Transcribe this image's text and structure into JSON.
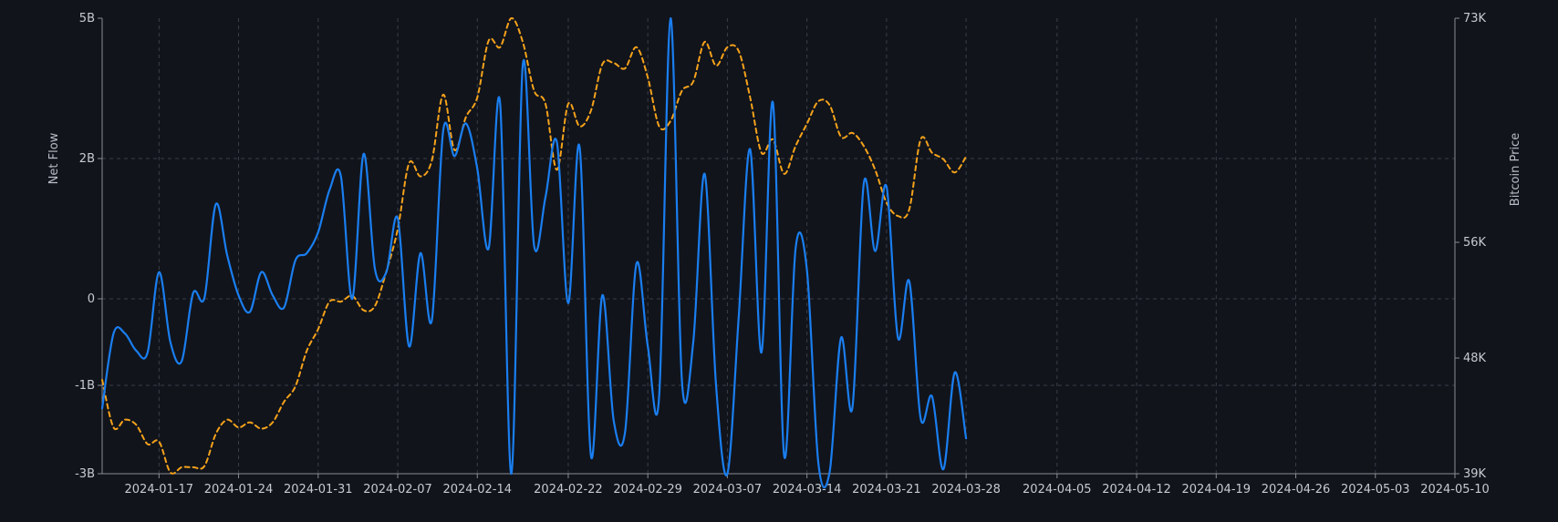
{
  "chart_data": {
    "type": "line",
    "x_range": [
      "2024-01-12",
      "2024-05-10"
    ],
    "x_ticks": [
      "2024-01-17",
      "2024-01-24",
      "2024-01-31",
      "2024-02-07",
      "2024-02-14",
      "2024-02-22",
      "2024-02-29",
      "2024-03-07",
      "2024-03-14",
      "2024-03-21",
      "2024-03-28",
      "2024-04-05",
      "2024-04-12",
      "2024-04-19",
      "2024-04-26",
      "2024-05-03",
      "2024-05-10"
    ],
    "y_left": {
      "label": "Net Flow",
      "ticks": [
        "5B",
        "2B",
        "0",
        "-1B",
        "-3B"
      ],
      "tick_values": [
        5,
        2,
        0,
        -1,
        -3
      ]
    },
    "y_right": {
      "label": "Bitcoin Price",
      "ticks": [
        "73K",
        "56K",
        "48K",
        "39K"
      ]
    },
    "grid": true,
    "colors": {
      "net_flow": "#1a7ef0",
      "price": "#f5a21b",
      "background": "#11141b",
      "grid": "#3a3e48"
    },
    "series": [
      {
        "name": "Net Flow",
        "axis": "left",
        "style": "solid",
        "color": "#1a7ef0",
        "points": [
          [
            "2024-01-12",
            -1.52
          ],
          [
            "2024-01-13",
            -0.4
          ],
          [
            "2024-01-14",
            -0.4
          ],
          [
            "2024-01-15",
            -0.6
          ],
          [
            "2024-01-16",
            -0.62
          ],
          [
            "2024-01-17",
            0.38
          ],
          [
            "2024-01-18",
            -0.5
          ],
          [
            "2024-01-19",
            -0.72
          ],
          [
            "2024-01-20",
            0.08
          ],
          [
            "2024-01-21",
            0.02
          ],
          [
            "2024-01-22",
            1.35
          ],
          [
            "2024-01-23",
            0.62
          ],
          [
            "2024-01-24",
            0.05
          ],
          [
            "2024-01-25",
            -0.15
          ],
          [
            "2024-01-26",
            0.38
          ],
          [
            "2024-01-27",
            0.05
          ],
          [
            "2024-01-28",
            -0.1
          ],
          [
            "2024-01-29",
            0.55
          ],
          [
            "2024-01-30",
            0.65
          ],
          [
            "2024-01-31",
            0.95
          ],
          [
            "2024-02-01",
            1.55
          ],
          [
            "2024-02-02",
            1.75
          ],
          [
            "2024-02-03",
            0.0
          ],
          [
            "2024-02-04",
            2.1
          ],
          [
            "2024-02-05",
            0.42
          ],
          [
            "2024-02-06",
            0.38
          ],
          [
            "2024-02-07",
            1.15
          ],
          [
            "2024-02-08",
            -0.55
          ],
          [
            "2024-02-09",
            0.65
          ],
          [
            "2024-02-10",
            -0.25
          ],
          [
            "2024-02-11",
            2.6
          ],
          [
            "2024-02-12",
            2.05
          ],
          [
            "2024-02-13",
            2.75
          ],
          [
            "2024-02-14",
            1.85
          ],
          [
            "2024-02-15",
            0.72
          ],
          [
            "2024-02-16",
            3.2
          ],
          [
            "2024-02-17",
            -3.75
          ],
          [
            "2024-02-18",
            4.0
          ],
          [
            "2024-02-19",
            0.75
          ],
          [
            "2024-02-20",
            1.45
          ],
          [
            "2024-02-21",
            2.35
          ],
          [
            "2024-02-22",
            -0.05
          ],
          [
            "2024-02-23",
            2.25
          ],
          [
            "2024-02-24",
            -2.6
          ],
          [
            "2024-02-25",
            0.05
          ],
          [
            "2024-02-26",
            -1.8
          ],
          [
            "2024-02-27",
            -2.05
          ],
          [
            "2024-02-28",
            0.5
          ],
          [
            "2024-02-29",
            -0.55
          ],
          [
            "2024-03-01",
            -1.25
          ],
          [
            "2024-03-02",
            5.0
          ],
          [
            "2024-03-03",
            -0.95
          ],
          [
            "2024-03-04",
            -0.5
          ],
          [
            "2024-03-05",
            1.78
          ],
          [
            "2024-03-06",
            -1.0
          ],
          [
            "2024-03-07",
            -3.0
          ],
          [
            "2024-03-08",
            -0.2
          ],
          [
            "2024-03-09",
            2.2
          ],
          [
            "2024-03-10",
            -0.62
          ],
          [
            "2024-03-11",
            3.2
          ],
          [
            "2024-03-12",
            -2.6
          ],
          [
            "2024-03-13",
            0.72
          ],
          [
            "2024-03-14",
            0.4
          ],
          [
            "2024-03-15",
            -2.75
          ],
          [
            "2024-03-16",
            -2.95
          ],
          [
            "2024-03-17",
            -0.45
          ],
          [
            "2024-03-18",
            -1.5
          ],
          [
            "2024-03-19",
            1.65
          ],
          [
            "2024-03-20",
            0.68
          ],
          [
            "2024-03-21",
            1.6
          ],
          [
            "2024-03-22",
            -0.45
          ],
          [
            "2024-03-23",
            0.25
          ],
          [
            "2024-03-24",
            -1.75
          ],
          [
            "2024-03-25",
            -1.25
          ],
          [
            "2024-03-26",
            -2.9
          ],
          [
            "2024-03-27",
            -0.85
          ],
          [
            "2024-03-28",
            -2.2
          ]
        ]
      },
      {
        "name": "Bitcoin Price",
        "axis": "right",
        "style": "dashed",
        "color": "#f5a21b",
        "points": [
          [
            "2024-01-12",
            46.3
          ],
          [
            "2024-01-13",
            42.6
          ],
          [
            "2024-01-14",
            43.2
          ],
          [
            "2024-01-15",
            42.8
          ],
          [
            "2024-01-16",
            41.3
          ],
          [
            "2024-01-17",
            41.5
          ],
          [
            "2024-01-18",
            39.1
          ],
          [
            "2024-01-19",
            39.5
          ],
          [
            "2024-01-20",
            39.5
          ],
          [
            "2024-01-21",
            39.6
          ],
          [
            "2024-01-22",
            42.1
          ],
          [
            "2024-01-23",
            43.2
          ],
          [
            "2024-01-24",
            42.6
          ],
          [
            "2024-01-25",
            43.0
          ],
          [
            "2024-01-26",
            42.5
          ],
          [
            "2024-01-27",
            43.0
          ],
          [
            "2024-01-28",
            44.6
          ],
          [
            "2024-01-29",
            45.8
          ],
          [
            "2024-01-30",
            48.5
          ],
          [
            "2024-01-31",
            50.0
          ],
          [
            "2024-02-01",
            51.9
          ],
          [
            "2024-02-02",
            51.9
          ],
          [
            "2024-02-03",
            52.3
          ],
          [
            "2024-02-04",
            51.3
          ],
          [
            "2024-02-05",
            51.6
          ],
          [
            "2024-02-06",
            54.0
          ],
          [
            "2024-02-07",
            57.0
          ],
          [
            "2024-02-08",
            62.0
          ],
          [
            "2024-02-09",
            61.0
          ],
          [
            "2024-02-10",
            62.2
          ],
          [
            "2024-02-11",
            67.2
          ],
          [
            "2024-02-12",
            63.0
          ],
          [
            "2024-02-13",
            65.5
          ],
          [
            "2024-02-14",
            67.0
          ],
          [
            "2024-02-15",
            71.3
          ],
          [
            "2024-02-16",
            70.8
          ],
          [
            "2024-02-17",
            73.0
          ],
          [
            "2024-02-18",
            71.2
          ],
          [
            "2024-02-19",
            67.5
          ],
          [
            "2024-02-20",
            66.5
          ],
          [
            "2024-02-21",
            61.5
          ],
          [
            "2024-02-22",
            66.5
          ],
          [
            "2024-02-23",
            64.8
          ],
          [
            "2024-02-24",
            66.0
          ],
          [
            "2024-02-25",
            69.5
          ],
          [
            "2024-02-26",
            69.6
          ],
          [
            "2024-02-27",
            69.2
          ],
          [
            "2024-02-28",
            70.8
          ],
          [
            "2024-02-29",
            68.5
          ],
          [
            "2024-03-01",
            64.8
          ],
          [
            "2024-03-02",
            65.2
          ],
          [
            "2024-03-03",
            67.5
          ],
          [
            "2024-03-04",
            68.2
          ],
          [
            "2024-03-05",
            71.2
          ],
          [
            "2024-03-06",
            69.4
          ],
          [
            "2024-03-07",
            70.8
          ],
          [
            "2024-03-08",
            70.5
          ],
          [
            "2024-03-09",
            67.0
          ],
          [
            "2024-03-10",
            62.8
          ],
          [
            "2024-03-11",
            63.8
          ],
          [
            "2024-03-12",
            61.2
          ],
          [
            "2024-03-13",
            63.3
          ],
          [
            "2024-03-14",
            65.0
          ],
          [
            "2024-03-15",
            66.7
          ],
          [
            "2024-03-16",
            66.4
          ],
          [
            "2024-03-17",
            64.0
          ],
          [
            "2024-03-18",
            64.3
          ],
          [
            "2024-03-19",
            63.3
          ],
          [
            "2024-03-20",
            61.5
          ],
          [
            "2024-03-21",
            59.0
          ],
          [
            "2024-03-22",
            58.0
          ],
          [
            "2024-03-23",
            58.5
          ],
          [
            "2024-03-24",
            63.8
          ],
          [
            "2024-03-25",
            62.8
          ],
          [
            "2024-03-26",
            62.3
          ],
          [
            "2024-03-27",
            61.3
          ],
          [
            "2024-03-28",
            62.5
          ]
        ]
      }
    ]
  }
}
